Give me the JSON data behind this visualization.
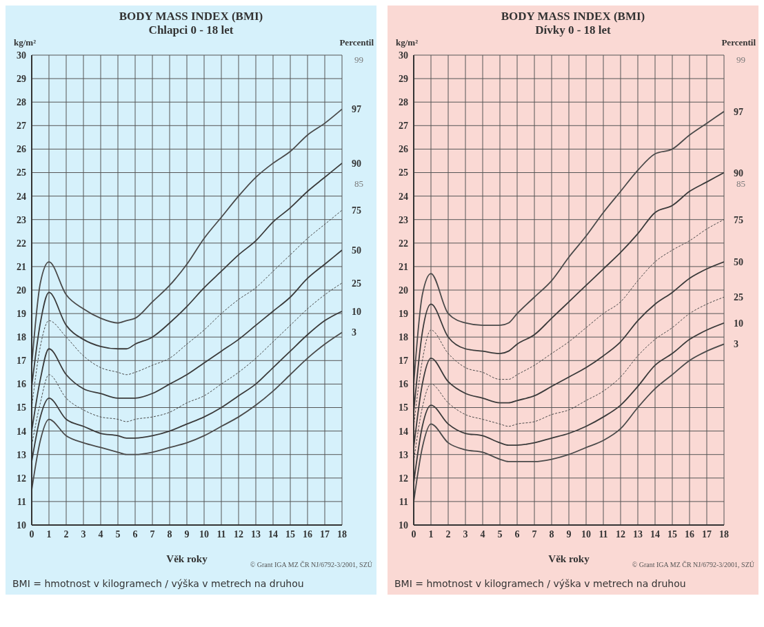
{
  "chart_data": [
    {
      "type": "line",
      "title": "BODY MASS INDEX (BMI)",
      "subtitle": "Chlapci 0 - 18 let",
      "xlabel": "Věk roky",
      "ylabel": "kg/m²",
      "legend_title": "Percentil",
      "legend": false,
      "grid": true,
      "marker": "none",
      "x": [
        0,
        0.5,
        1,
        2,
        3,
        4,
        5,
        5.5,
        6,
        7,
        8,
        9,
        10,
        11,
        12,
        13,
        14,
        15,
        16,
        17,
        18
      ],
      "xlim": [
        0,
        18
      ],
      "xticks": [
        0,
        1,
        2,
        3,
        4,
        5,
        6,
        7,
        8,
        9,
        10,
        11,
        12,
        13,
        14,
        15,
        16,
        17,
        18
      ],
      "ylim": [
        10,
        30
      ],
      "yticks": [
        10,
        11,
        12,
        13,
        14,
        15,
        16,
        17,
        18,
        19,
        20,
        21,
        22,
        23,
        24,
        25,
        26,
        27,
        28,
        29,
        30
      ],
      "series": [
        {
          "name": "3",
          "color": "#4a4a4a",
          "line_style": "solid",
          "values": [
            11.5,
            13.6,
            14.5,
            13.8,
            13.5,
            13.3,
            13.1,
            13.0,
            13.0,
            13.1,
            13.3,
            13.5,
            13.8,
            14.2,
            14.6,
            15.1,
            15.7,
            16.4,
            17.1,
            17.7,
            18.2
          ]
        },
        {
          "name": "10",
          "color": "#3a3a3a",
          "line_style": "solid",
          "values": [
            12.7,
            14.6,
            15.4,
            14.5,
            14.2,
            13.9,
            13.8,
            13.7,
            13.7,
            13.8,
            14.0,
            14.3,
            14.6,
            15.0,
            15.5,
            16.0,
            16.7,
            17.4,
            18.1,
            18.7,
            19.1
          ]
        },
        {
          "name": "25",
          "color": "#4a4a4a",
          "line_style": "dashed",
          "values": [
            13.4,
            15.2,
            16.4,
            15.4,
            14.9,
            14.6,
            14.5,
            14.4,
            14.5,
            14.6,
            14.8,
            15.2,
            15.5,
            16.0,
            16.5,
            17.1,
            17.8,
            18.5,
            19.2,
            19.8,
            20.3
          ]
        },
        {
          "name": "50",
          "color": "#3a3a3a",
          "line_style": "solid",
          "values": [
            14.0,
            16.2,
            17.5,
            16.4,
            15.8,
            15.6,
            15.4,
            15.4,
            15.4,
            15.6,
            16.0,
            16.4,
            16.9,
            17.4,
            17.9,
            18.5,
            19.1,
            19.7,
            20.5,
            21.1,
            21.7
          ]
        },
        {
          "name": "75",
          "color": "#4a4a4a",
          "line_style": "dashed",
          "values": [
            15.0,
            17.6,
            18.7,
            18.0,
            17.2,
            16.7,
            16.5,
            16.4,
            16.5,
            16.8,
            17.1,
            17.7,
            18.3,
            19.0,
            19.6,
            20.1,
            20.8,
            21.5,
            22.2,
            22.8,
            23.4
          ]
        },
        {
          "name": "90",
          "color": "#3a3a3a",
          "line_style": "solid",
          "values": [
            15.9,
            18.6,
            19.9,
            18.5,
            17.9,
            17.6,
            17.5,
            17.5,
            17.7,
            18.0,
            18.6,
            19.3,
            20.1,
            20.8,
            21.5,
            22.1,
            22.9,
            23.5,
            24.2,
            24.8,
            25.4
          ]
        },
        {
          "name": "97",
          "color": "#4a4a4a",
          "line_style": "solid",
          "values": [
            16.8,
            20.3,
            21.2,
            19.8,
            19.2,
            18.8,
            18.6,
            18.7,
            18.8,
            19.5,
            20.2,
            21.1,
            22.2,
            23.1,
            24.0,
            24.8,
            25.4,
            25.9,
            26.6,
            27.1,
            27.7
          ]
        }
      ],
      "annotations": [
        "99",
        "85",
        "© Grant IGA MZ ČR NJ/6792-3/2001, SZÚ",
        "BMI = hmotnost v kilogramech  / výška v metrech na druhou"
      ]
    },
    {
      "type": "line",
      "title": "BODY MASS INDEX (BMI)",
      "subtitle": "Dívky 0 - 18 let",
      "xlabel": "Věk roky",
      "ylabel": "kg/m²",
      "legend_title": "Percentil",
      "legend": false,
      "grid": true,
      "marker": "none",
      "x": [
        0,
        0.5,
        1,
        2,
        3,
        4,
        5,
        5.5,
        6,
        7,
        8,
        9,
        10,
        11,
        12,
        13,
        14,
        15,
        16,
        17,
        18
      ],
      "xlim": [
        0,
        18
      ],
      "xticks": [
        0,
        1,
        2,
        3,
        4,
        5,
        6,
        7,
        8,
        9,
        10,
        11,
        12,
        13,
        14,
        15,
        16,
        17,
        18
      ],
      "ylim": [
        10,
        30
      ],
      "yticks": [
        10,
        11,
        12,
        13,
        14,
        15,
        16,
        17,
        18,
        19,
        20,
        21,
        22,
        23,
        24,
        25,
        26,
        27,
        28,
        29,
        30
      ],
      "series": [
        {
          "name": "3",
          "color": "#4a4a4a",
          "line_style": "solid",
          "values": [
            11.0,
            13.3,
            14.3,
            13.5,
            13.2,
            13.1,
            12.8,
            12.7,
            12.7,
            12.7,
            12.8,
            13.0,
            13.3,
            13.6,
            14.1,
            15.0,
            15.8,
            16.4,
            17.0,
            17.4,
            17.7
          ]
        },
        {
          "name": "10",
          "color": "#3a3a3a",
          "line_style": "solid",
          "values": [
            11.8,
            14.2,
            15.1,
            14.3,
            13.9,
            13.8,
            13.5,
            13.4,
            13.4,
            13.5,
            13.7,
            13.9,
            14.2,
            14.6,
            15.1,
            15.9,
            16.8,
            17.3,
            17.9,
            18.3,
            18.6
          ]
        },
        {
          "name": "25",
          "color": "#4a4a4a",
          "line_style": "dashed",
          "values": [
            12.7,
            15.0,
            16.0,
            15.2,
            14.7,
            14.5,
            14.3,
            14.2,
            14.3,
            14.4,
            14.7,
            14.9,
            15.3,
            15.7,
            16.3,
            17.2,
            17.9,
            18.4,
            19.0,
            19.4,
            19.7
          ]
        },
        {
          "name": "50",
          "color": "#3a3a3a",
          "line_style": "solid",
          "values": [
            13.3,
            16.0,
            17.1,
            16.1,
            15.6,
            15.4,
            15.2,
            15.2,
            15.3,
            15.5,
            15.9,
            16.3,
            16.7,
            17.2,
            17.8,
            18.7,
            19.4,
            19.9,
            20.5,
            20.9,
            21.2
          ]
        },
        {
          "name": "75",
          "color": "#4a4a4a",
          "line_style": "dashed",
          "values": [
            14.2,
            17.0,
            18.3,
            17.3,
            16.7,
            16.5,
            16.2,
            16.2,
            16.4,
            16.8,
            17.3,
            17.8,
            18.4,
            19.0,
            19.5,
            20.4,
            21.2,
            21.7,
            22.1,
            22.6,
            23.0
          ]
        },
        {
          "name": "90",
          "color": "#3a3a3a",
          "line_style": "solid",
          "values": [
            14.8,
            18.2,
            19.4,
            18.0,
            17.5,
            17.4,
            17.3,
            17.4,
            17.7,
            18.1,
            18.8,
            19.5,
            20.2,
            20.9,
            21.6,
            22.4,
            23.3,
            23.6,
            24.2,
            24.6,
            25.0
          ]
        },
        {
          "name": "97",
          "color": "#4a4a4a",
          "line_style": "solid",
          "values": [
            16.0,
            19.8,
            20.7,
            19.0,
            18.6,
            18.5,
            18.5,
            18.6,
            19.0,
            19.7,
            20.4,
            21.4,
            22.3,
            23.3,
            24.2,
            25.1,
            25.8,
            26.0,
            26.6,
            27.1,
            27.6
          ]
        }
      ],
      "annotations": [
        "99",
        "85",
        "© Grant IGA MZ ČR NJ/6792-3/2001, SZÚ",
        "BMI = hmotnost v kilogramech  / výška v metrech na druhou"
      ]
    }
  ]
}
